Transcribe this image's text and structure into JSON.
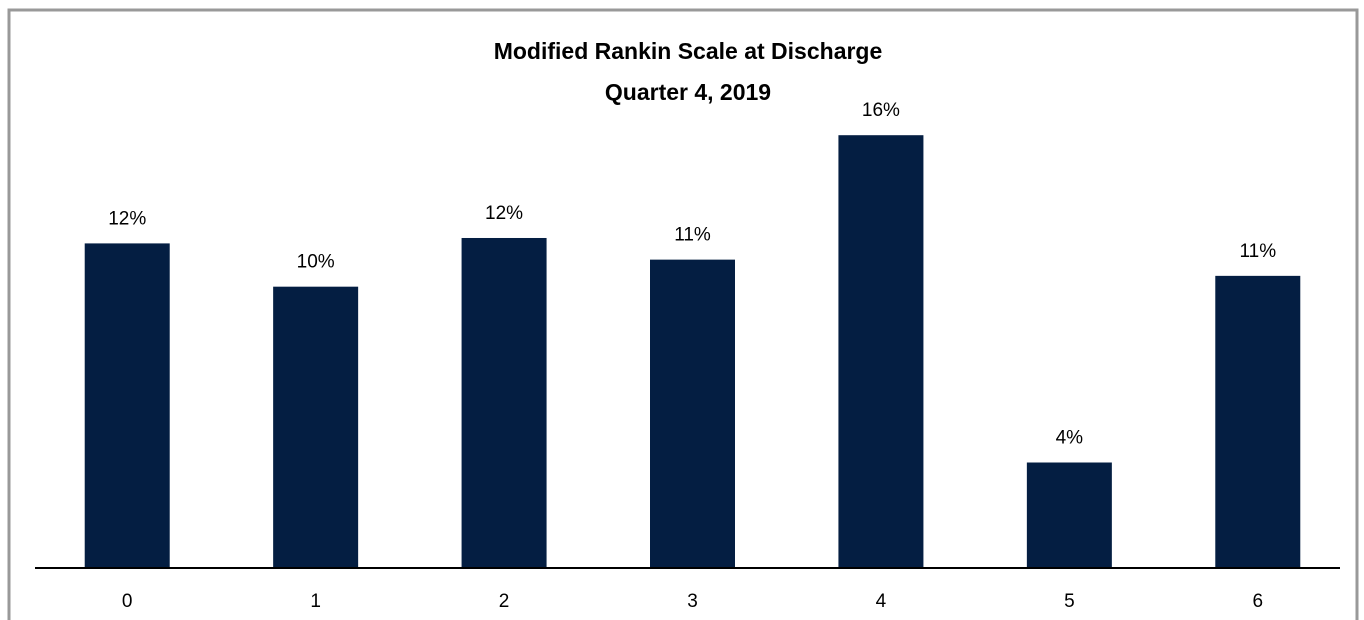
{
  "chart_data": {
    "type": "bar",
    "title": "Modified Rankin Scale at Discharge",
    "subtitle": "Quarter 4, 2019",
    "categories": [
      "0",
      "1",
      "2",
      "3",
      "4",
      "5",
      "6"
    ],
    "values": [
      12.0,
      10.4,
      12.2,
      11.4,
      16.0,
      3.9,
      10.8
    ],
    "value_labels": [
      "12%",
      "10%",
      "12%",
      "11%",
      "16%",
      "4%",
      "11%"
    ],
    "color": "#041e42",
    "ylim": [
      0,
      20
    ]
  }
}
